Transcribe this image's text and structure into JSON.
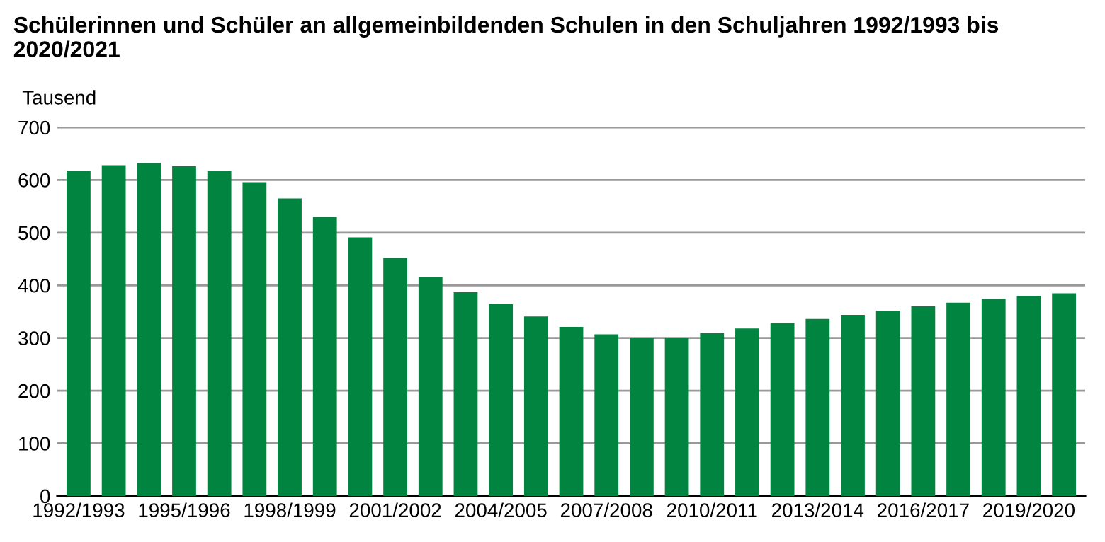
{
  "chart_data": {
    "type": "bar",
    "title": "Schülerinnen und Schüler an allgemeinbildenden Schulen in den Schuljahren 1992/1993 bis 2020/2021",
    "ylabel": "Tausend",
    "categories": [
      "1992/1993",
      null,
      null,
      "1995/1996",
      null,
      null,
      "1998/1999",
      null,
      null,
      "2001/2002",
      null,
      null,
      "2004/2005",
      null,
      null,
      "2007/2008",
      null,
      null,
      "2010/2011",
      null,
      null,
      "2013/2014",
      null,
      null,
      "2016/2017",
      null,
      null,
      "2019/2020",
      null
    ],
    "values": [
      618,
      628,
      632,
      626,
      617,
      596,
      565,
      530,
      491,
      452,
      415,
      387,
      364,
      341,
      321,
      307,
      301,
      301,
      309,
      318,
      328,
      336,
      344,
      352,
      360,
      367,
      374,
      380,
      385
    ],
    "color": "#00843f",
    "ylim": [
      0,
      700
    ],
    "yticks": [
      0,
      100,
      200,
      300,
      400,
      500,
      600,
      700
    ],
    "grid": "y",
    "legend": false
  }
}
